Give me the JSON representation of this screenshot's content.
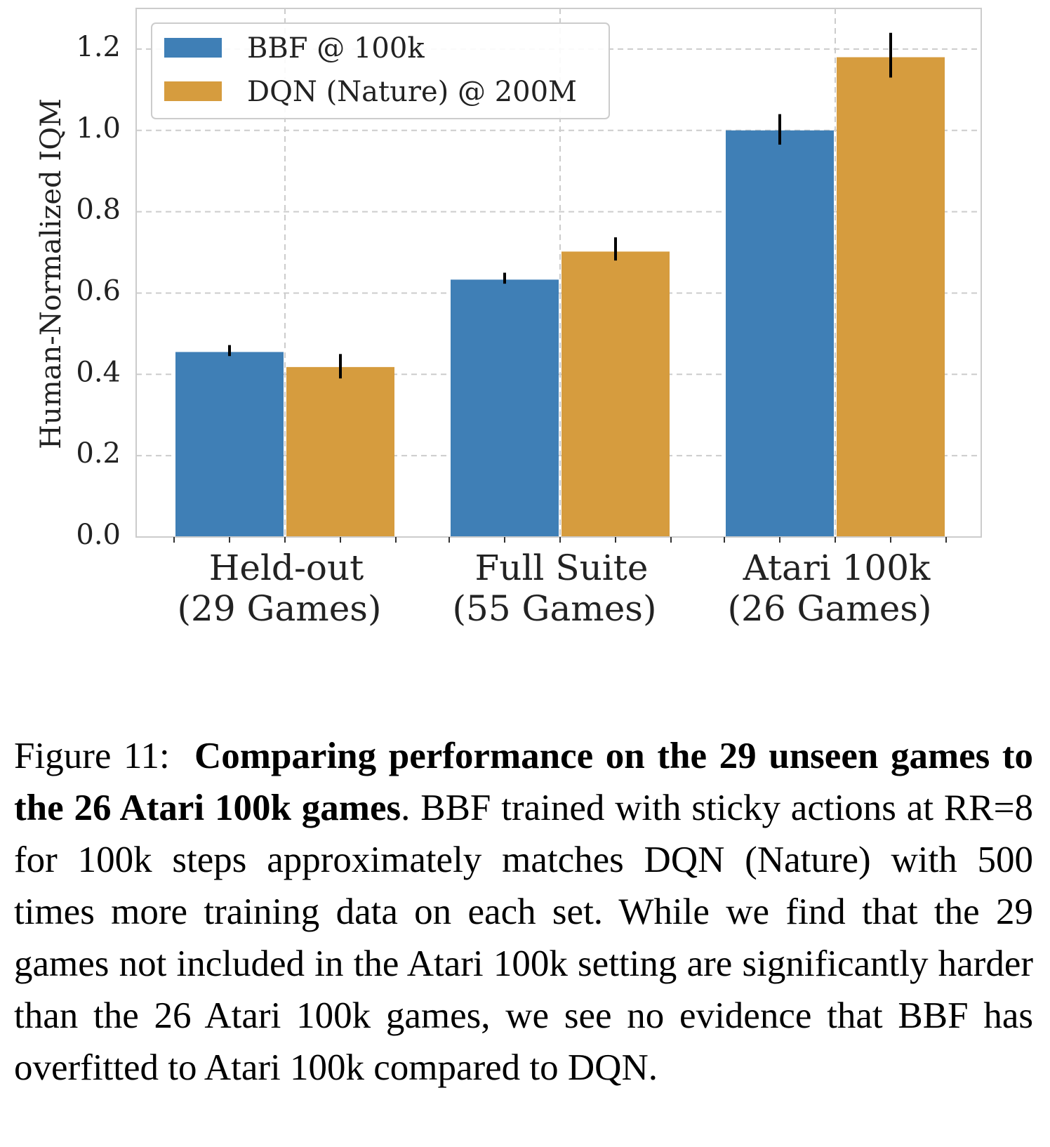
{
  "chart_data": {
    "type": "bar",
    "categories": [
      [
        "Held-out",
        "(29 Games)"
      ],
      [
        "Full Suite",
        "(55 Games)"
      ],
      [
        "Atari 100k",
        "(26 Games)"
      ]
    ],
    "series": [
      {
        "name": "BBF @ 100k",
        "color": "#3f7fb6",
        "values": [
          0.455,
          0.633,
          1.0
        ],
        "err_low": [
          0.445,
          0.623,
          0.965
        ],
        "err_high": [
          0.472,
          0.65,
          1.04
        ]
      },
      {
        "name": "DQN (Nature) @ 200M",
        "color": "#d69c3e",
        "values": [
          0.418,
          0.702,
          1.18
        ],
        "err_low": [
          0.39,
          0.68,
          1.13
        ],
        "err_high": [
          0.45,
          0.737,
          1.24
        ]
      }
    ],
    "yticks": [
      "0.0",
      "0.2",
      "0.4",
      "0.6",
      "0.8",
      "1.0",
      "1.2"
    ],
    "ylabel": "Human-Normalized IQM",
    "xlabel": "",
    "title": "",
    "ylim": [
      0,
      1.3
    ],
    "grid": true,
    "legend_position": "top-left"
  },
  "caption": {
    "label": "Figure 11:",
    "bold": "Comparing performance on the 29 unseen games to the 26 Atari 100k games",
    "text": ". BBF trained with sticky actions at RR=8 for 100k steps approximately matches DQN (Nature) with 500 times more training data on each set. While we find that the 29 games not included in the Atari 100k setting are significantly harder than the 26 Atari 100k games, we see no evidence that BBF has overfitted to Atari 100k compared to DQN."
  }
}
